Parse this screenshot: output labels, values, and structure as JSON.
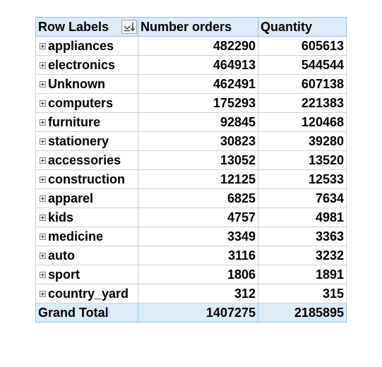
{
  "pivot": {
    "headers": {
      "row_labels": "Row Labels",
      "number_orders": "Number orders",
      "quantity": "Quantity"
    },
    "sort_icon_glyph": "⊻↓",
    "rows": [
      {
        "label": "appliances",
        "orders": "482290",
        "quantity": "605613"
      },
      {
        "label": "electronics",
        "orders": "464913",
        "quantity": "544544"
      },
      {
        "label": "Unknown",
        "orders": "462491",
        "quantity": "607138"
      },
      {
        "label": "computers",
        "orders": "175293",
        "quantity": "221383"
      },
      {
        "label": "furniture",
        "orders": "92845",
        "quantity": "120468"
      },
      {
        "label": "stationery",
        "orders": "30823",
        "quantity": "39280"
      },
      {
        "label": "accessories",
        "orders": "13052",
        "quantity": "13520"
      },
      {
        "label": "construction",
        "orders": "12125",
        "quantity": "12533"
      },
      {
        "label": "apparel",
        "orders": "6825",
        "quantity": "7634"
      },
      {
        "label": "kids",
        "orders": "4757",
        "quantity": "4981"
      },
      {
        "label": "medicine",
        "orders": "3349",
        "quantity": "3363"
      },
      {
        "label": "auto",
        "orders": "3116",
        "quantity": "3232"
      },
      {
        "label": "sport",
        "orders": "1806",
        "quantity": "1891"
      },
      {
        "label": "country_yard",
        "orders": "312",
        "quantity": "315"
      }
    ],
    "total": {
      "label": "Grand Total",
      "orders": "1407275",
      "quantity": "2185895"
    },
    "colors": {
      "header_fill": "#ddebf7",
      "border": "#9bc2e6"
    }
  }
}
